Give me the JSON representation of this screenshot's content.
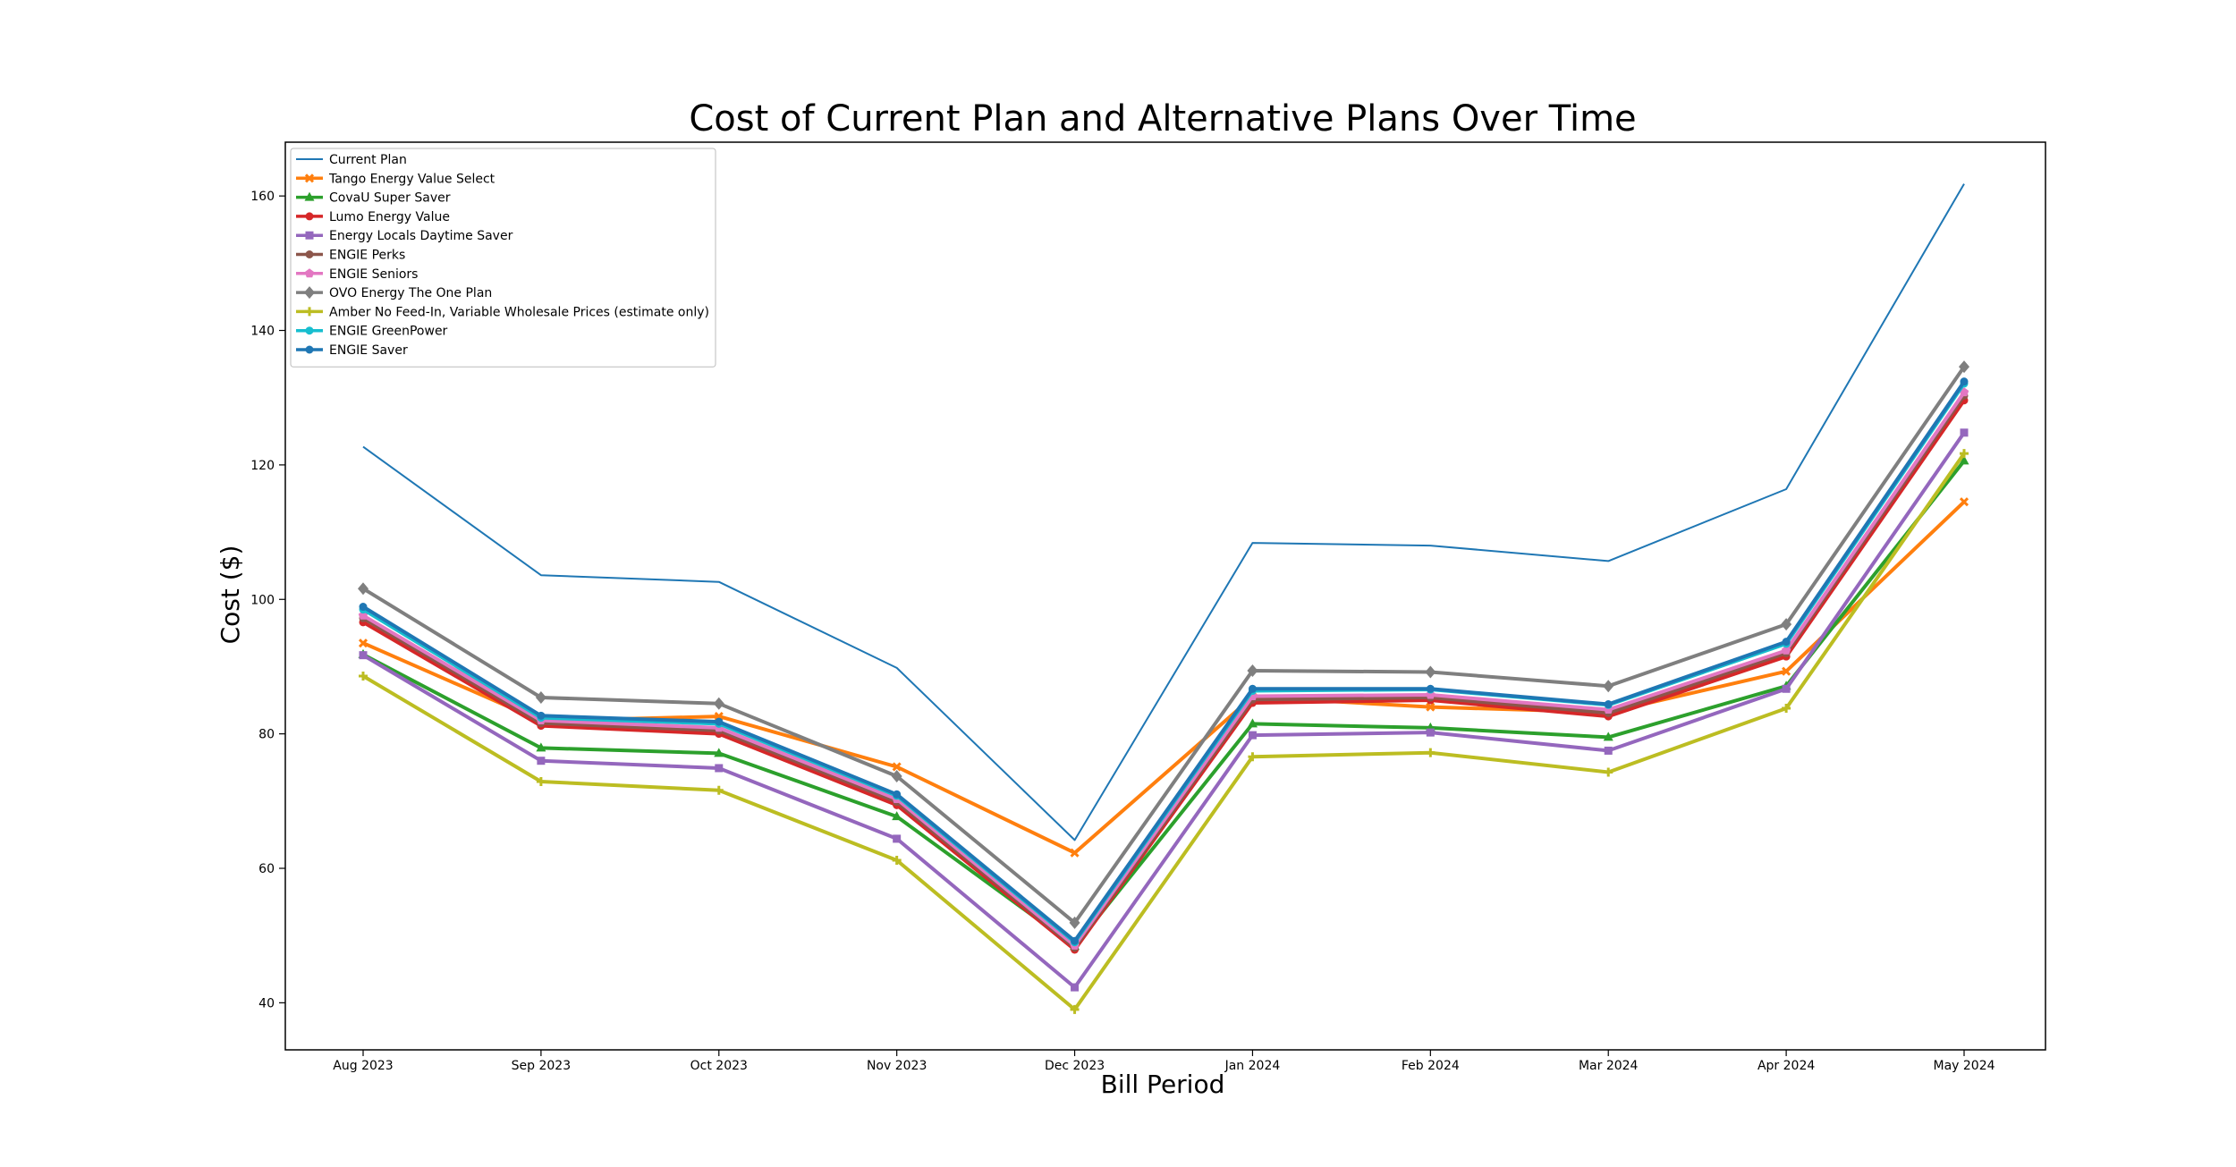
{
  "chart_data": {
    "type": "line",
    "title": "Cost of Current Plan and Alternative Plans Over Time",
    "xlabel": "Bill Period",
    "ylabel": "Cost ($)",
    "categories": [
      "Aug 2023",
      "Sep 2023",
      "Oct 2023",
      "Nov 2023",
      "Dec 2023",
      "Jan 2024",
      "Feb 2024",
      "Mar 2024",
      "Apr 2024",
      "May 2024"
    ],
    "ylim": [
      33,
      168
    ],
    "yticks": [
      40,
      60,
      80,
      100,
      120,
      140,
      160
    ],
    "grid": false,
    "legend_position": "upper-left",
    "series": [
      {
        "name": "Current Plan",
        "color": "#1f77b4",
        "marker": "none",
        "linewidth": 2,
        "values": [
          122.7,
          103.6,
          102.6,
          89.8,
          64.2,
          108.4,
          108.0,
          105.7,
          116.4,
          161.8
        ]
      },
      {
        "name": "Tango Energy Value Select",
        "color": "#ff7f0e",
        "marker": "x",
        "linewidth": 4,
        "values": [
          93.5,
          81.9,
          82.6,
          75.1,
          62.3,
          85.5,
          84.0,
          83.2,
          89.3,
          114.5
        ]
      },
      {
        "name": "CovaU Super Saver",
        "color": "#2ca02c",
        "marker": "triangle",
        "linewidth": 4,
        "values": [
          91.8,
          77.9,
          77.1,
          67.7,
          48.4,
          81.5,
          80.9,
          79.5,
          87.1,
          120.6
        ]
      },
      {
        "name": "Lumo Energy Value",
        "color": "#d62728",
        "marker": "circle",
        "linewidth": 4,
        "values": [
          96.6,
          81.2,
          80.0,
          69.4,
          47.9,
          84.6,
          85.0,
          82.6,
          91.5,
          129.6
        ]
      },
      {
        "name": "Energy Locals Daytime Saver",
        "color": "#9467bd",
        "marker": "square",
        "linewidth": 4,
        "values": [
          91.7,
          76.0,
          74.9,
          64.4,
          42.3,
          79.8,
          80.2,
          77.5,
          86.7,
          124.8
        ]
      },
      {
        "name": "ENGIE Perks",
        "color": "#8c564b",
        "marker": "circle",
        "linewidth": 4,
        "values": [
          97.2,
          81.6,
          80.5,
          69.9,
          48.2,
          85.1,
          85.4,
          83.1,
          92.0,
          130.3
        ]
      },
      {
        "name": "ENGIE Seniors",
        "color": "#e377c2",
        "marker": "pentagon",
        "linewidth": 4,
        "values": [
          97.6,
          82.0,
          80.9,
          70.3,
          48.5,
          85.6,
          85.8,
          83.6,
          92.4,
          130.8
        ]
      },
      {
        "name": "OVO Energy The One Plan",
        "color": "#7f7f7f",
        "marker": "diamond",
        "linewidth": 4,
        "values": [
          101.6,
          85.4,
          84.5,
          73.7,
          51.9,
          89.4,
          89.2,
          87.1,
          96.3,
          134.6
        ]
      },
      {
        "name": "Amber No Feed-In, Variable Wholesale Prices (estimate only)",
        "color": "#bcbd22",
        "marker": "plus",
        "linewidth": 4,
        "values": [
          88.6,
          72.9,
          71.6,
          61.2,
          39.0,
          76.6,
          77.2,
          74.3,
          83.8,
          121.7
        ]
      },
      {
        "name": "ENGIE GreenPower",
        "color": "#17becf",
        "marker": "circle",
        "linewidth": 4,
        "values": [
          98.5,
          82.4,
          81.5,
          70.8,
          49.0,
          86.4,
          86.6,
          84.3,
          93.4,
          132.1
        ]
      },
      {
        "name": "ENGIE Saver",
        "color": "#1f77b4",
        "marker": "circle",
        "linewidth": 4,
        "values": [
          98.9,
          82.7,
          81.8,
          71.0,
          49.2,
          86.7,
          86.7,
          84.4,
          93.7,
          132.4
        ]
      }
    ]
  }
}
